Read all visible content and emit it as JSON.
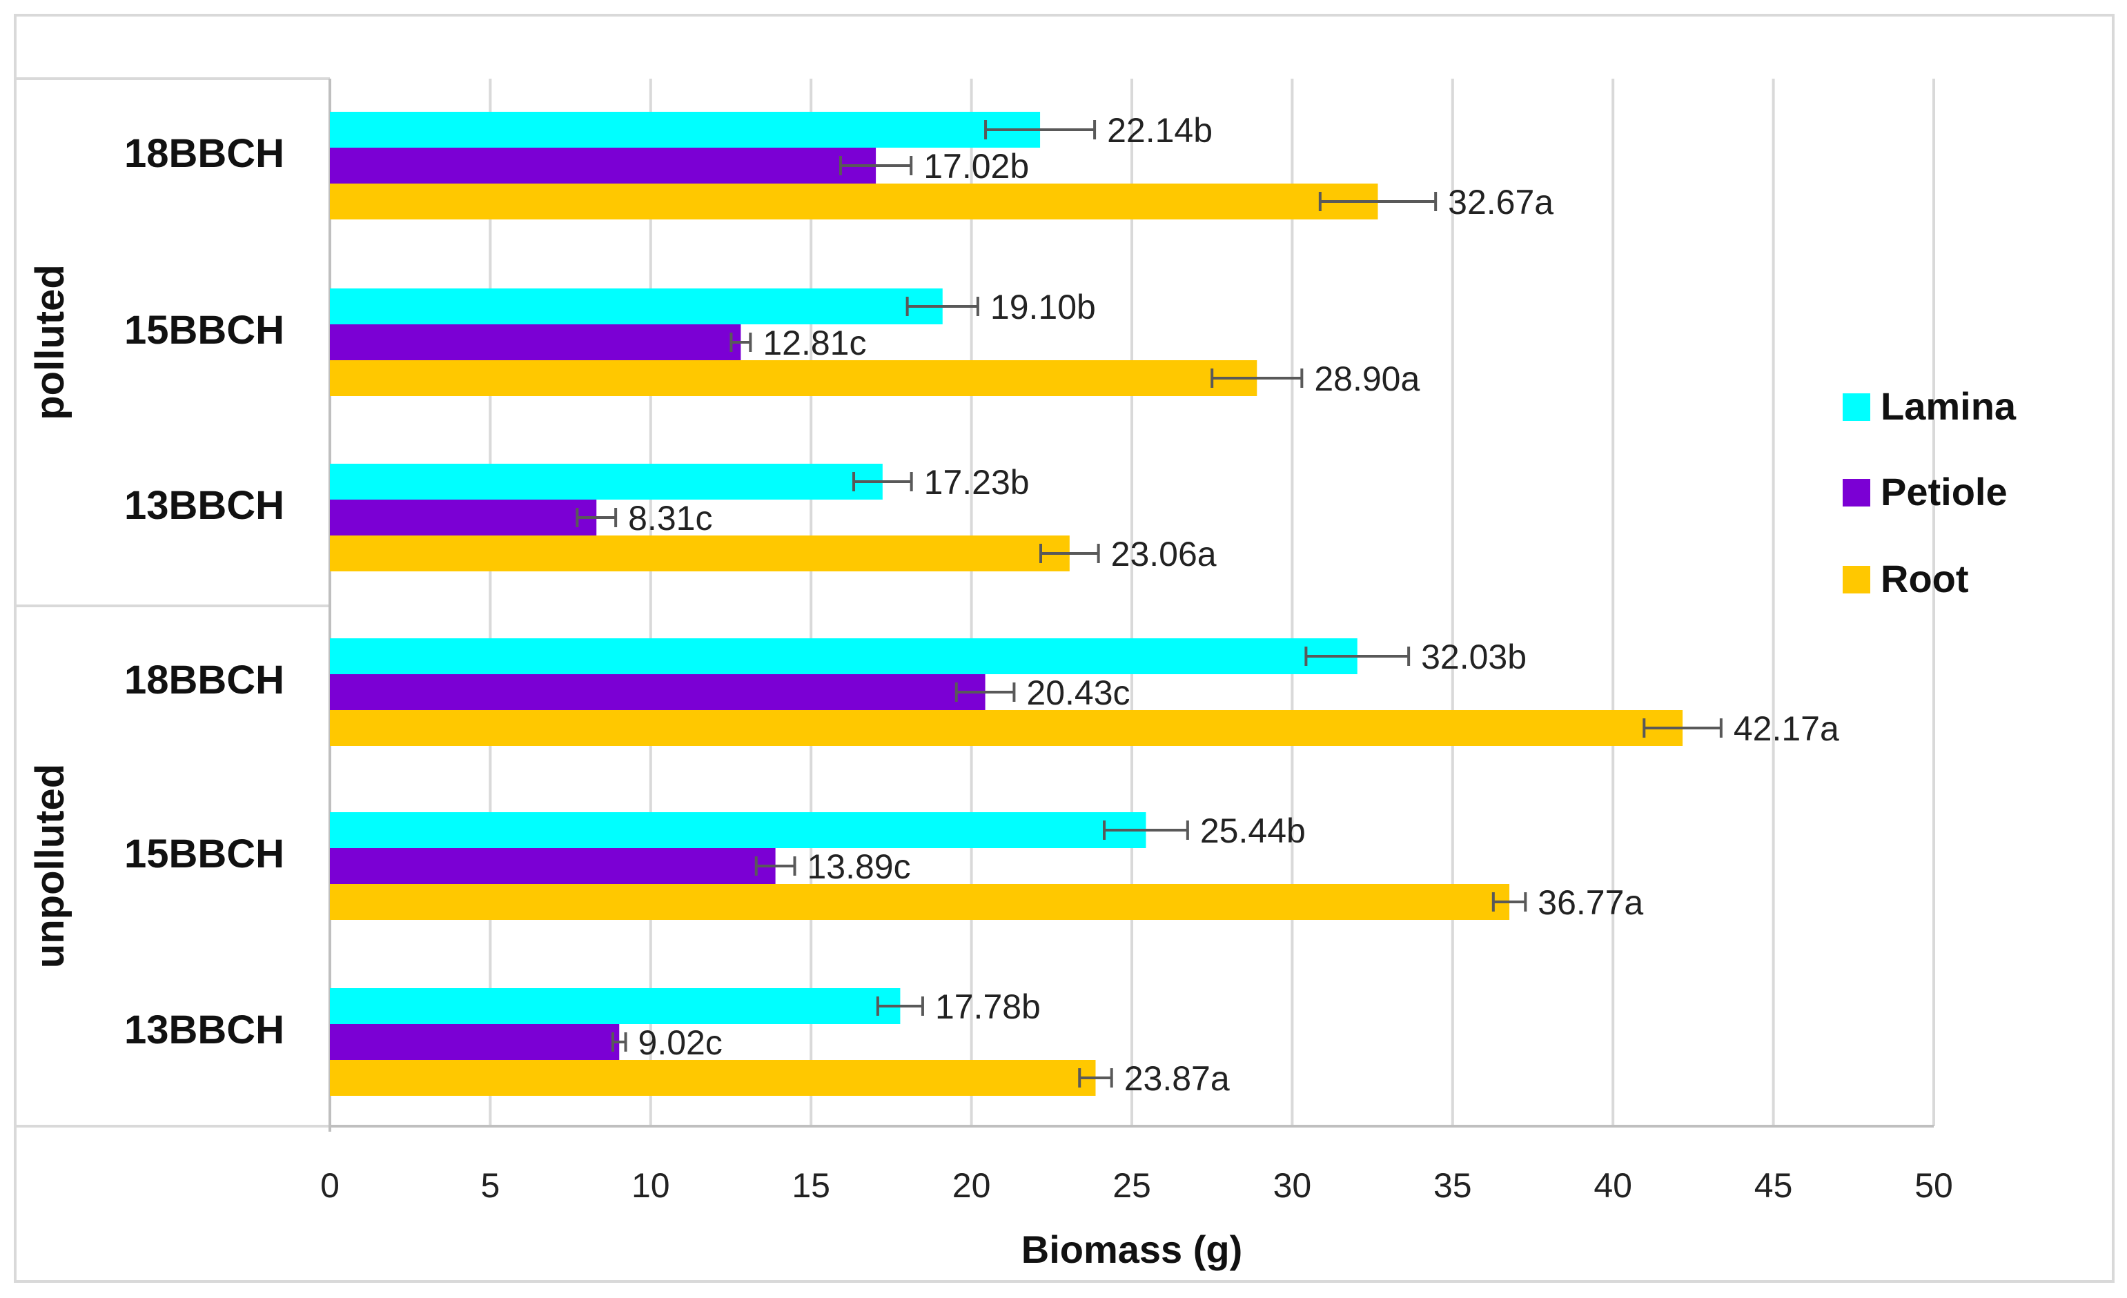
{
  "chart_data": {
    "type": "bar",
    "orientation": "horizontal",
    "xlabel": "Biomass (g)",
    "xlim": [
      0,
      50
    ],
    "x_ticks": [
      "0",
      "5",
      "10",
      "15",
      "20",
      "25",
      "30",
      "35",
      "40",
      "45",
      "50"
    ],
    "grid": "vertical",
    "legend_position": "right",
    "groups": [
      {
        "name": "polluted",
        "categories": [
          {
            "label": "18BBCH",
            "bars": [
              {
                "series": "Lamina",
                "value": 22.14,
                "error": 1.7,
                "label": "22.14b"
              },
              {
                "series": "Petiole",
                "value": 17.02,
                "error": 1.1,
                "label": "17.02b"
              },
              {
                "series": "Root",
                "value": 32.67,
                "error": 1.8,
                "label": "32.67a"
              }
            ]
          },
          {
            "label": "15BBCH",
            "bars": [
              {
                "series": "Lamina",
                "value": 19.1,
                "error": 1.1,
                "label": "19.10b"
              },
              {
                "series": "Petiole",
                "value": 12.81,
                "error": 0.3,
                "label": "12.81c"
              },
              {
                "series": "Root",
                "value": 28.9,
                "error": 1.4,
                "label": "28.90a"
              }
            ]
          },
          {
            "label": "13BBCH",
            "bars": [
              {
                "series": "Lamina",
                "value": 17.23,
                "error": 0.9,
                "label": "17.23b"
              },
              {
                "series": "Petiole",
                "value": 8.31,
                "error": 0.6,
                "label": "8.31c"
              },
              {
                "series": "Root",
                "value": 23.06,
                "error": 0.9,
                "label": "23.06a"
              }
            ]
          }
        ]
      },
      {
        "name": "unpolluted",
        "categories": [
          {
            "label": "18BBCH",
            "bars": [
              {
                "series": "Lamina",
                "value": 32.03,
                "error": 1.6,
                "label": "32.03b"
              },
              {
                "series": "Petiole",
                "value": 20.43,
                "error": 0.9,
                "label": "20.43c"
              },
              {
                "series": "Root",
                "value": 42.17,
                "error": 1.2,
                "label": "42.17a"
              }
            ]
          },
          {
            "label": "15BBCH",
            "bars": [
              {
                "series": "Lamina",
                "value": 25.44,
                "error": 1.3,
                "label": "25.44b"
              },
              {
                "series": "Petiole",
                "value": 13.89,
                "error": 0.6,
                "label": "13.89c"
              },
              {
                "series": "Root",
                "value": 36.77,
                "error": 0.5,
                "label": "36.77a"
              }
            ]
          },
          {
            "label": "13BBCH",
            "bars": [
              {
                "series": "Lamina",
                "value": 17.78,
                "error": 0.7,
                "label": "17.78b"
              },
              {
                "series": "Petiole",
                "value": 9.02,
                "error": 0.2,
                "label": "9.02c"
              },
              {
                "series": "Root",
                "value": 23.87,
                "error": 0.5,
                "label": "23.87a"
              }
            ]
          }
        ]
      }
    ],
    "series": [
      {
        "name": "Lamina",
        "color": "#00ffff"
      },
      {
        "name": "Petiole",
        "color": "#7b00d4"
      },
      {
        "name": "Root",
        "color": "#ffc800"
      }
    ]
  }
}
